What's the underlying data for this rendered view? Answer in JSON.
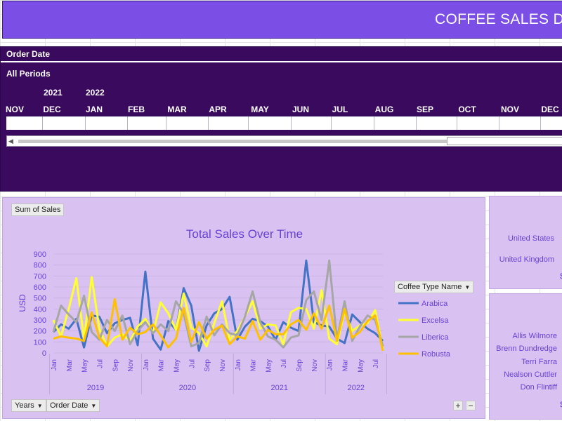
{
  "header": {
    "title": "COFFEE SALES DA"
  },
  "timeline": {
    "field_label": "Order Date",
    "periods_label": "All Periods",
    "years": [
      "2021",
      "2022"
    ],
    "months": [
      "NOV",
      "DEC",
      "JAN",
      "FEB",
      "MAR",
      "APR",
      "MAY",
      "JUN",
      "JUL",
      "AUG",
      "SEP",
      "OCT",
      "NOV",
      "DEC"
    ]
  },
  "chart_panel": {
    "value_field_button": "Sum of Sales",
    "legend_field_button": "Coffee Type Name",
    "axis_field_buttons": [
      "Years",
      "Order Date"
    ],
    "zoom_plus": "+",
    "zoom_minus": "−"
  },
  "chart_data": {
    "type": "line",
    "title": "Total Sales Over Time",
    "ylabel": "USD",
    "xlabel": "",
    "ylim": [
      0,
      900
    ],
    "yticks": [
      0,
      100,
      200,
      300,
      400,
      500,
      600,
      700,
      800,
      900
    ],
    "x_month_labels": [
      "Jan",
      "Mar",
      "May",
      "Jul",
      "Sep",
      "Nov",
      "Jan",
      "Mar",
      "May",
      "Jul",
      "Sep",
      "Nov",
      "Jan",
      "Mar",
      "May",
      "Jul",
      "Sep",
      "Nov",
      "Jan",
      "Mar",
      "May",
      "Jul"
    ],
    "years": [
      {
        "label": "2019",
        "months": 12
      },
      {
        "label": "2020",
        "months": 12
      },
      {
        "label": "2021",
        "months": 12
      },
      {
        "label": "2022",
        "months": 8
      }
    ],
    "legend_position": "right",
    "grid": true,
    "series": [
      {
        "name": "Arabica",
        "color": "#4472c4",
        "values": [
          190,
          260,
          220,
          310,
          50,
          340,
          330,
          180,
          270,
          300,
          320,
          70,
          740,
          130,
          30,
          290,
          210,
          590,
          430,
          20,
          250,
          360,
          400,
          510,
          120,
          240,
          310,
          290,
          240,
          120,
          280,
          230,
          200,
          840,
          280,
          250,
          240,
          130,
          90,
          350,
          280,
          220,
          180,
          110
        ]
      },
      {
        "name": "Excelsa",
        "color": "#ffff33",
        "values": [
          300,
          150,
          400,
          680,
          120,
          690,
          220,
          60,
          140,
          170,
          110,
          240,
          310,
          180,
          460,
          360,
          210,
          540,
          230,
          180,
          60,
          270,
          470,
          120,
          200,
          330,
          470,
          220,
          260,
          250,
          80,
          370,
          410,
          400,
          220,
          570,
          130,
          80,
          380,
          200,
          250,
          270,
          390,
          30
        ]
      },
      {
        "name": "Liberica",
        "color": "#a6a6a6",
        "values": [
          190,
          430,
          350,
          280,
          520,
          190,
          120,
          300,
          200,
          340,
          80,
          200,
          280,
          180,
          260,
          200,
          470,
          360,
          60,
          90,
          330,
          160,
          260,
          180,
          160,
          330,
          560,
          280,
          150,
          120,
          50,
          140,
          160,
          480,
          560,
          300,
          840,
          120,
          470,
          110,
          240,
          340,
          300,
          60
        ]
      },
      {
        "name": "Robusta",
        "color": "#ffc000",
        "values": [
          130,
          150,
          140,
          130,
          110,
          370,
          140,
          60,
          490,
          120,
          230,
          170,
          190,
          260,
          160,
          50,
          130,
          410,
          100,
          280,
          130,
          210,
          250,
          80,
          150,
          130,
          290,
          120,
          210,
          170,
          170,
          260,
          300,
          210,
          360,
          220,
          430,
          110,
          400,
          140,
          190,
          290,
          340,
          20
        ]
      }
    ]
  },
  "side_top": {
    "labels": [
      "United States",
      "United Kingdom"
    ],
    "partial_value": "$"
  },
  "side_bottom": {
    "labels": [
      "Allis Wilmore",
      "Brenn Dundredge",
      "Terri Farra",
      "Nealson Cuttler",
      "Don Flintiff"
    ],
    "partial_value": "$"
  }
}
